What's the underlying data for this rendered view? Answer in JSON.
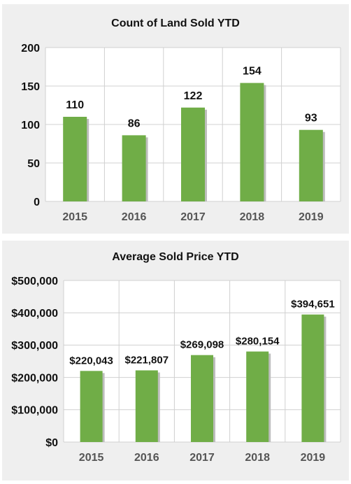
{
  "chart_data": [
    {
      "type": "bar",
      "title": "Count of Land Sold YTD",
      "categories": [
        "2015",
        "2016",
        "2017",
        "2018",
        "2019"
      ],
      "values": [
        110,
        86,
        122,
        154,
        93
      ],
      "data_labels": [
        "110",
        "86",
        "122",
        "154",
        "93"
      ],
      "ylim": [
        0,
        200
      ],
      "yticks": [
        0,
        50,
        100,
        150,
        200
      ],
      "ytick_labels": [
        "0",
        "50",
        "100",
        "150",
        "200"
      ],
      "xlabel": "",
      "ylabel": "",
      "grid": true,
      "bar_color": "#70ad47"
    },
    {
      "type": "bar",
      "title": "Average Sold Price YTD",
      "categories": [
        "2015",
        "2016",
        "2017",
        "2018",
        "2019"
      ],
      "values": [
        220043,
        221807,
        269098,
        280154,
        394651
      ],
      "data_labels": [
        "$220,043",
        "$221,807",
        "$269,098",
        "$280,154",
        "$394,651"
      ],
      "ylim": [
        0,
        500000
      ],
      "yticks": [
        0,
        100000,
        200000,
        300000,
        400000,
        500000
      ],
      "ytick_labels": [
        "$0",
        "$100,000",
        "$200,000",
        "$300,000",
        "$400,000",
        "$500,000"
      ],
      "xlabel": "",
      "ylabel": "",
      "grid": true,
      "bar_color": "#70ad47"
    }
  ]
}
